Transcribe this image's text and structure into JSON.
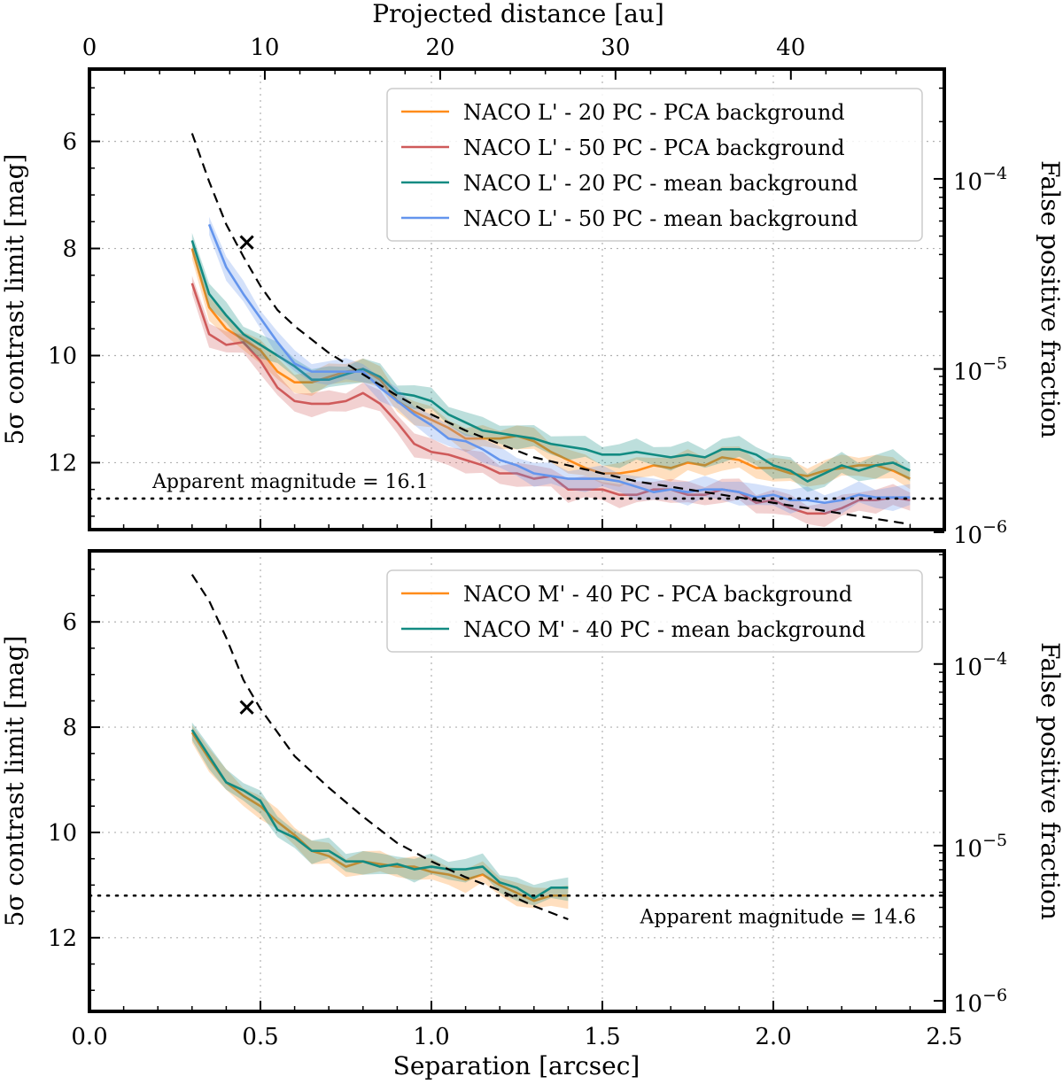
{
  "chart_data": [
    {
      "type": "line",
      "panel": "top",
      "title": "",
      "xlabel": "",
      "ylabel": "5σ contrast limit [mag]",
      "y2label": "False positive fraction",
      "top_xlabel": "Projected distance [au]",
      "top_ticks": [
        0,
        10,
        20,
        30,
        40
      ],
      "top_ticks_scale_au_per_arcsec": 19.5,
      "xlim": [
        0.0,
        2.5
      ],
      "ylim": [
        13.25,
        4.65
      ],
      "yticks": [
        6,
        8,
        10,
        12
      ],
      "y2ticks": [
        "10^{-4}",
        "10^{-5}",
        "10^{-6}"
      ],
      "y2tick_values_mag": [
        6.7,
        10.25,
        13.3
      ],
      "grid": true,
      "legend": "top-right",
      "series": [
        {
          "name": "NACO L' - 20 PC - PCA background",
          "color": "#ff8c1a",
          "x": [
            0.3,
            0.35,
            0.4,
            0.45,
            0.5,
            0.55,
            0.6,
            0.65,
            0.7,
            0.75,
            0.8,
            0.85,
            0.9,
            0.95,
            1.0,
            1.05,
            1.1,
            1.15,
            1.2,
            1.25,
            1.3,
            1.35,
            1.4,
            1.45,
            1.5,
            1.55,
            1.6,
            1.65,
            1.7,
            1.75,
            1.8,
            1.85,
            1.9,
            1.95,
            2.0,
            2.05,
            2.1,
            2.15,
            2.2,
            2.25,
            2.3,
            2.35,
            2.4
          ],
          "values": [
            8.0,
            9.1,
            9.5,
            9.7,
            9.9,
            10.3,
            10.5,
            10.5,
            10.4,
            10.3,
            10.25,
            10.45,
            10.85,
            11.05,
            11.2,
            11.35,
            11.55,
            11.55,
            11.55,
            11.5,
            11.6,
            11.8,
            11.95,
            12.1,
            12.2,
            12.2,
            12.15,
            12.05,
            12.1,
            12.0,
            12.05,
            11.9,
            11.95,
            12.1,
            12.1,
            12.2,
            12.25,
            12.15,
            12.1,
            12.05,
            12.05,
            12.15,
            12.3
          ]
        },
        {
          "name": "NACO L' - 50 PC - PCA background",
          "color": "#cf5a5a",
          "x": [
            0.3,
            0.35,
            0.4,
            0.45,
            0.5,
            0.55,
            0.6,
            0.65,
            0.7,
            0.75,
            0.8,
            0.85,
            0.9,
            0.95,
            1.0,
            1.05,
            1.1,
            1.15,
            1.2,
            1.25,
            1.3,
            1.35,
            1.4,
            1.45,
            1.5,
            1.55,
            1.6,
            1.65,
            1.7,
            1.75,
            1.8,
            1.85,
            1.9,
            1.95,
            2.0,
            2.05,
            2.1,
            2.15,
            2.2,
            2.25,
            2.3,
            2.35,
            2.4
          ],
          "values": [
            8.65,
            9.6,
            9.8,
            9.75,
            10.1,
            10.6,
            10.85,
            10.9,
            10.9,
            10.85,
            10.7,
            10.9,
            11.25,
            11.65,
            11.8,
            11.85,
            11.95,
            12.05,
            12.2,
            12.2,
            12.3,
            12.25,
            12.5,
            12.5,
            12.5,
            12.6,
            12.6,
            12.5,
            12.5,
            12.6,
            12.6,
            12.5,
            12.55,
            12.75,
            12.7,
            12.85,
            12.95,
            12.95,
            12.85,
            12.7,
            12.7,
            12.65,
            12.7
          ]
        },
        {
          "name": "NACO L' - 20 PC - mean background",
          "color": "#128b82",
          "x": [
            0.3,
            0.35,
            0.4,
            0.45,
            0.5,
            0.55,
            0.6,
            0.65,
            0.7,
            0.75,
            0.8,
            0.85,
            0.9,
            0.95,
            1.0,
            1.05,
            1.1,
            1.15,
            1.2,
            1.25,
            1.3,
            1.35,
            1.4,
            1.45,
            1.5,
            1.55,
            1.6,
            1.65,
            1.7,
            1.75,
            1.8,
            1.85,
            1.9,
            1.95,
            2.0,
            2.05,
            2.1,
            2.15,
            2.2,
            2.25,
            2.3,
            2.35,
            2.4
          ],
          "values": [
            7.85,
            8.85,
            9.25,
            9.6,
            9.8,
            10.0,
            10.2,
            10.45,
            10.45,
            10.35,
            10.25,
            10.4,
            10.7,
            10.75,
            10.85,
            11.1,
            11.25,
            11.4,
            11.45,
            11.5,
            11.55,
            11.65,
            11.7,
            11.75,
            11.85,
            11.85,
            11.8,
            11.85,
            11.9,
            11.85,
            11.9,
            11.75,
            11.75,
            11.85,
            12.05,
            12.15,
            12.35,
            12.2,
            12.05,
            12.15,
            12.05,
            12.0,
            12.15
          ]
        },
        {
          "name": "NACO L' - 50 PC - mean background",
          "color": "#6495ed",
          "x": [
            0.35,
            0.4,
            0.45,
            0.5,
            0.55,
            0.6,
            0.65,
            0.7,
            0.75,
            0.8,
            0.85,
            0.9,
            0.95,
            1.0,
            1.05,
            1.1,
            1.15,
            1.2,
            1.25,
            1.3,
            1.35,
            1.4,
            1.45,
            1.5,
            1.55,
            1.6,
            1.65,
            1.7,
            1.75,
            1.8,
            1.85,
            1.9,
            1.95,
            2.0,
            2.05,
            2.1,
            2.15,
            2.2,
            2.25,
            2.3,
            2.35,
            2.4
          ],
          "values": [
            7.55,
            8.35,
            8.85,
            9.3,
            9.75,
            10.15,
            10.3,
            10.3,
            10.3,
            10.3,
            10.6,
            10.85,
            11.1,
            11.3,
            11.55,
            11.6,
            11.75,
            11.95,
            12.05,
            12.2,
            12.25,
            12.3,
            12.3,
            12.3,
            12.35,
            12.45,
            12.55,
            12.5,
            12.55,
            12.5,
            12.5,
            12.55,
            12.65,
            12.6,
            12.7,
            12.7,
            12.75,
            12.7,
            12.6,
            12.65,
            12.65,
            12.65
          ]
        },
        {
          "name": "false positive fraction curve",
          "color": "#000000",
          "style": "dashed",
          "x": [
            0.3,
            0.35,
            0.4,
            0.45,
            0.5,
            0.55,
            0.6,
            0.7,
            0.8,
            0.9,
            1.0,
            1.1,
            1.2,
            1.3,
            1.4,
            1.5,
            1.6,
            1.7,
            1.8,
            1.9,
            2.0,
            2.1,
            2.2,
            2.3,
            2.4
          ],
          "values": [
            5.85,
            6.75,
            7.55,
            8.15,
            8.7,
            9.15,
            9.45,
            9.95,
            10.35,
            10.75,
            11.1,
            11.4,
            11.65,
            11.9,
            12.05,
            12.2,
            12.35,
            12.45,
            12.55,
            12.65,
            12.75,
            12.85,
            12.95,
            13.05,
            13.15
          ]
        }
      ],
      "marker": {
        "symbol": "×",
        "x": 0.46,
        "y": 7.88
      },
      "hline": {
        "y": 12.67,
        "style": "dotted",
        "label": "Apparent magnitude = 16.1"
      }
    },
    {
      "type": "line",
      "panel": "bottom",
      "title": "",
      "xlabel": "Separation [arcsec]",
      "ylabel": "5σ contrast limit [mag]",
      "y2label": "False positive fraction",
      "xlim": [
        0.0,
        2.5
      ],
      "xticks": [
        0.0,
        0.5,
        1.0,
        1.5,
        2.0,
        2.5
      ],
      "xtick_labels": [
        "0.0",
        "0.5",
        "1.0",
        "1.5",
        "2.0",
        "2.5"
      ],
      "ylim": [
        13.4,
        4.65
      ],
      "yticks": [
        6,
        8,
        10,
        12
      ],
      "y2ticks": [
        "10^{-4}",
        "10^{-5}",
        "10^{-6}"
      ],
      "y2tick_values_mag": [
        6.8,
        10.25,
        13.2
      ],
      "grid": true,
      "legend": "top-right",
      "series": [
        {
          "name": "NACO M' - 40 PC - PCA background",
          "color": "#ff8c1a",
          "x": [
            0.3,
            0.35,
            0.4,
            0.45,
            0.5,
            0.55,
            0.6,
            0.65,
            0.7,
            0.75,
            0.8,
            0.85,
            0.9,
            0.95,
            1.0,
            1.05,
            1.1,
            1.15,
            1.2,
            1.25,
            1.3,
            1.35,
            1.4
          ],
          "values": [
            8.1,
            8.6,
            9.05,
            9.3,
            9.5,
            9.8,
            10.05,
            10.35,
            10.45,
            10.65,
            10.55,
            10.6,
            10.65,
            10.65,
            10.75,
            10.8,
            10.9,
            10.8,
            11.0,
            11.15,
            11.3,
            11.2,
            11.2
          ]
        },
        {
          "name": "NACO M' - 40 PC - mean background",
          "color": "#128b82",
          "x": [
            0.3,
            0.35,
            0.4,
            0.45,
            0.5,
            0.55,
            0.6,
            0.65,
            0.7,
            0.75,
            0.8,
            0.85,
            0.9,
            0.95,
            1.0,
            1.05,
            1.1,
            1.15,
            1.2,
            1.25,
            1.3,
            1.35,
            1.4
          ],
          "values": [
            8.05,
            8.55,
            9.05,
            9.2,
            9.4,
            9.95,
            10.1,
            10.35,
            10.35,
            10.55,
            10.55,
            10.65,
            10.6,
            10.7,
            10.65,
            10.7,
            10.7,
            10.65,
            10.95,
            11.05,
            11.25,
            11.05,
            11.05
          ]
        },
        {
          "name": "false positive fraction curve",
          "color": "#000000",
          "style": "dashed",
          "x": [
            0.3,
            0.35,
            0.4,
            0.45,
            0.5,
            0.55,
            0.6,
            0.7,
            0.8,
            0.9,
            1.0,
            1.1,
            1.2,
            1.3,
            1.4
          ],
          "values": [
            5.1,
            5.6,
            6.3,
            7.1,
            7.65,
            8.1,
            8.55,
            9.15,
            9.7,
            10.2,
            10.55,
            10.85,
            11.1,
            11.4,
            11.65
          ]
        }
      ],
      "marker": {
        "symbol": "×",
        "x": 0.46,
        "y": 7.62
      },
      "hline": {
        "y": 11.2,
        "style": "dotted",
        "label": "Apparent magnitude = 14.6"
      }
    }
  ]
}
